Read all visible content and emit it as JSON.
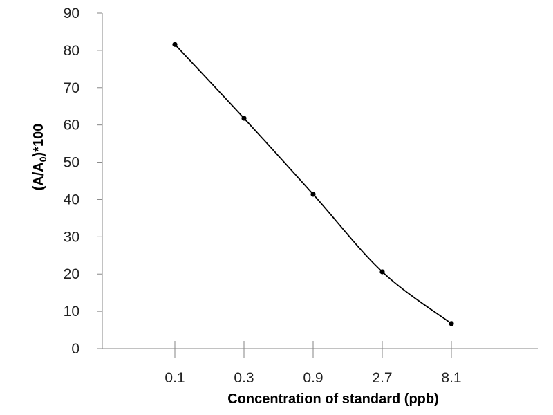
{
  "chart_data": {
    "type": "line",
    "title": "",
    "xlabel": "Concentration of standard (ppb)",
    "ylabel": {
      "main": "(A/A",
      "subscript": "0",
      "suffix": ")*100"
    },
    "categories": [
      "0.1",
      "0.3",
      "0.9",
      "2.7",
      "8.1"
    ],
    "series": [
      {
        "values": [
          81.6,
          61.8,
          41.4,
          20.6,
          6.7
        ],
        "color": "#000000",
        "smoothed": true,
        "markers": true
      }
    ],
    "ylim": [
      0,
      90
    ],
    "yticks": [
      0,
      10,
      20,
      30,
      40,
      50,
      60,
      70,
      80,
      90
    ],
    "grid": false,
    "legend": "none",
    "axis_color": "#868686"
  }
}
